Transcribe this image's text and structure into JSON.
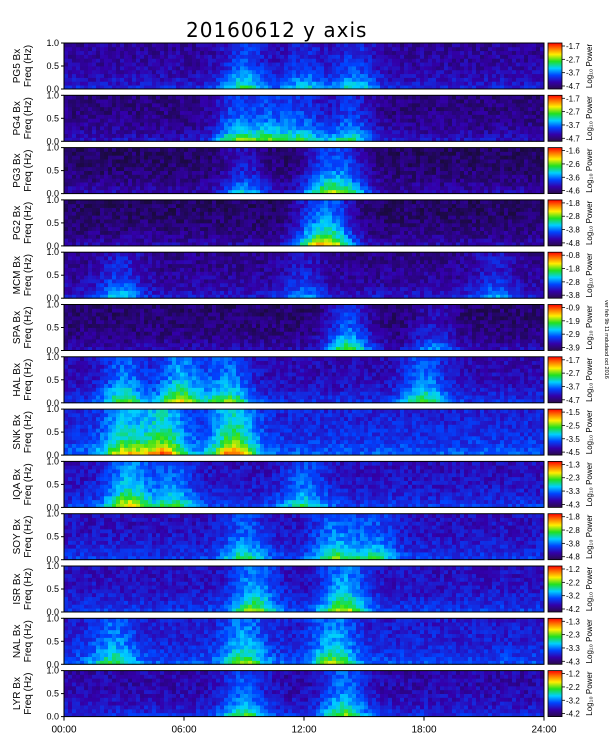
{
  "chart_data": {
    "type": "heatmap",
    "title": "20160612 y axis",
    "x_axis": {
      "range_hours": [
        0,
        24
      ],
      "tick_labels": [
        "00:00",
        "06:00",
        "12:00",
        "18:00",
        "24:00"
      ],
      "tick_hours": [
        0,
        6,
        12,
        18,
        24
      ]
    },
    "y_axis": {
      "range": [
        0,
        1.0
      ],
      "tick_labels": [
        "0.0",
        "0.5",
        "1.0"
      ],
      "tick_values": [
        0,
        0.5,
        1.0
      ]
    },
    "colorbar_label": "Log₁₀ Power",
    "side_note": "ver feb 9b 11 mdudaod oct 2016",
    "panels": [
      {
        "station": "PG5",
        "ylabel": [
          "PG5  Bx",
          "Freq (Hz)"
        ],
        "colorbar_ticks": [
          "-1.7",
          "-2.7",
          "-3.7",
          "-4.7"
        ],
        "bg_level": 0.12,
        "activity": [
          [
            9,
            0.38
          ],
          [
            12,
            0.28
          ],
          [
            14.5,
            0.3
          ]
        ]
      },
      {
        "station": "PG4",
        "ylabel": [
          "PG4  Bx",
          "Freq (Hz)"
        ],
        "colorbar_ticks": [
          "-1.7",
          "-2.7",
          "-3.7",
          "-4.7"
        ],
        "bg_level": 0.08,
        "activity": [
          [
            8.6,
            0.45
          ],
          [
            10.3,
            0.42
          ],
          [
            12,
            0.38
          ],
          [
            14.3,
            0.4
          ]
        ]
      },
      {
        "station": "PG3",
        "ylabel": [
          "PG3  Bx",
          "Freq (Hz)"
        ],
        "colorbar_ticks": [
          "-1.6",
          "-2.6",
          "-3.6",
          "-4.6"
        ],
        "bg_level": 0.05,
        "activity": [
          [
            9,
            0.32
          ],
          [
            13,
            0.42
          ],
          [
            14.2,
            0.38
          ]
        ]
      },
      {
        "station": "PG2",
        "ylabel": [
          "PG2  Bx",
          "Freq (Hz)"
        ],
        "colorbar_ticks": [
          "-1.8",
          "-2.8",
          "-3.8",
          "-4.8"
        ],
        "bg_level": 0.05,
        "activity": [
          [
            12.5,
            0.42
          ],
          [
            13.5,
            0.48
          ]
        ]
      },
      {
        "station": "MCM",
        "ylabel": [
          "MCM  Bx",
          "Freq (Hz)"
        ],
        "colorbar_ticks": [
          "-0.8",
          "-1.8",
          "-2.8",
          "-3.8"
        ],
        "bg_level": 0.1,
        "activity": [
          [
            2.8,
            0.3
          ],
          [
            12,
            0.22
          ],
          [
            21.5,
            0.22
          ]
        ]
      },
      {
        "station": "SPA",
        "ylabel": [
          "SPA  Bx",
          "Freq (Hz)"
        ],
        "colorbar_ticks": [
          "-0.9",
          "-1.9",
          "-2.9",
          "-3.9"
        ],
        "bg_level": 0.06,
        "activity": [
          [
            14.2,
            0.5
          ],
          [
            18.5,
            0.25
          ]
        ]
      },
      {
        "station": "HAL",
        "ylabel": [
          "HAL  Bx",
          "Freq (Hz)"
        ],
        "colorbar_ticks": [
          "-1.7",
          "-2.7",
          "-3.7",
          "-4.7"
        ],
        "bg_level": 0.15,
        "activity": [
          [
            3,
            0.42
          ],
          [
            5.8,
            0.55
          ],
          [
            8.2,
            0.45
          ],
          [
            18,
            0.4
          ]
        ]
      },
      {
        "station": "SNK",
        "ylabel": [
          "SNK  Bx",
          "Freq (Hz)"
        ],
        "colorbar_ticks": [
          "-1.5",
          "-2.5",
          "-3.5",
          "-4.5"
        ],
        "bg_level": 0.22,
        "activity": [
          [
            3,
            0.48
          ],
          [
            5,
            0.6
          ],
          [
            8.5,
            0.65
          ]
        ]
      },
      {
        "station": "IQA",
        "ylabel": [
          "IQA  Bx",
          "Freq (Hz)"
        ],
        "colorbar_ticks": [
          "-1.3",
          "-2.3",
          "-3.3",
          "-4.3"
        ],
        "bg_level": 0.17,
        "activity": [
          [
            3.2,
            0.55
          ],
          [
            5.5,
            0.35
          ],
          [
            12,
            0.3
          ]
        ]
      },
      {
        "station": "SOY",
        "ylabel": [
          "SOY  Bx",
          "Freq (Hz)"
        ],
        "colorbar_ticks": [
          "-1.8",
          "-2.8",
          "-3.8",
          "-4.8"
        ],
        "bg_level": 0.17,
        "activity": [
          [
            9,
            0.32
          ],
          [
            13.5,
            0.38
          ],
          [
            15.5,
            0.3
          ]
        ]
      },
      {
        "station": "ISR",
        "ylabel": [
          "ISR  Bx",
          "Freq (Hz)"
        ],
        "colorbar_ticks": [
          "-1.2",
          "-2.2",
          "-3.2",
          "-4.2"
        ],
        "bg_level": 0.17,
        "activity": [
          [
            9.5,
            0.45
          ],
          [
            14,
            0.5
          ]
        ]
      },
      {
        "station": "NAL",
        "ylabel": [
          "NAL  Bx",
          "Freq (Hz)"
        ],
        "colorbar_ticks": [
          "-1.3",
          "-2.3",
          "-3.3",
          "-4.3"
        ],
        "bg_level": 0.2,
        "activity": [
          [
            2.5,
            0.32
          ],
          [
            9,
            0.4
          ],
          [
            13.5,
            0.42
          ]
        ]
      },
      {
        "station": "LYR",
        "ylabel": [
          "LYR  Bx",
          "Freq (Hz)"
        ],
        "colorbar_ticks": [
          "-1.2",
          "-2.2",
          "-3.2",
          "-4.2"
        ],
        "bg_level": 0.14,
        "activity": [
          [
            9,
            0.38
          ],
          [
            14,
            0.45
          ]
        ]
      }
    ]
  }
}
